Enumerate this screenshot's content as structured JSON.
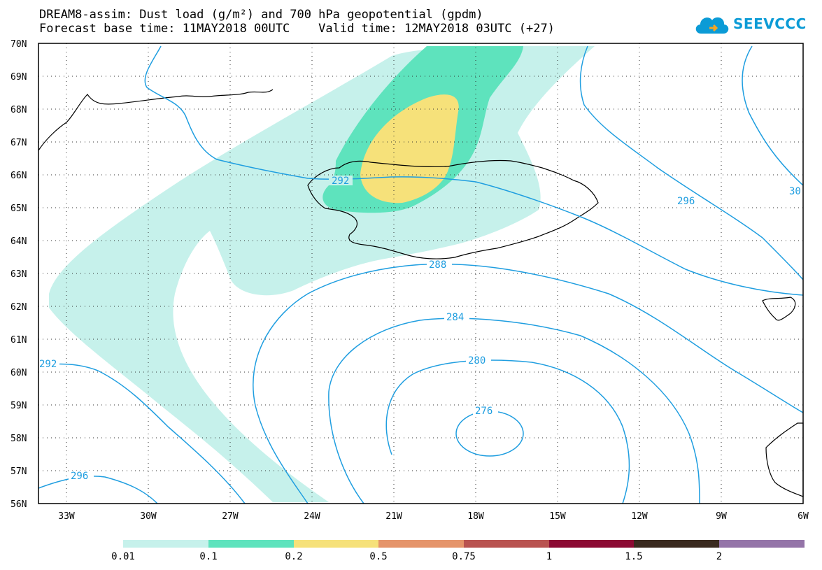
{
  "header": {
    "title_line1": "DREAM8-assim: Dust load (g/m²) and 700 hPa geopotential (gpdm)",
    "title_line2": "Forecast base time: 11MAY2018 00UTC    Valid time: 12MAY2018 03UTC (+27)"
  },
  "logo": {
    "text": "SEEVCCC",
    "icon": "cloud-icon"
  },
  "map": {
    "lat_labels": [
      "70N",
      "69N",
      "68N",
      "67N",
      "66N",
      "65N",
      "64N",
      "63N",
      "62N",
      "61N",
      "60N",
      "59N",
      "58N",
      "57N",
      "56N"
    ],
    "lon_labels": [
      "33W",
      "30W",
      "27W",
      "24W",
      "21W",
      "18W",
      "15W",
      "12W",
      "9W",
      "6W"
    ],
    "contour_labels": [
      "292",
      "296",
      "30",
      "288",
      "284",
      "280",
      "276",
      "292",
      "296"
    ],
    "colors": {
      "contour": "#1f9ee0",
      "coast": "#000000"
    }
  },
  "legend": {
    "colors": [
      "#c6f1eb",
      "#5ee3bd",
      "#f6e17a",
      "#e5946a",
      "#b95350",
      "#8c0a33",
      "#3a2a1f",
      "#9474a8"
    ],
    "labels": [
      "0.01",
      "0.1",
      "0.2",
      "0.5",
      "0.75",
      "1",
      "1.5",
      "2"
    ]
  }
}
